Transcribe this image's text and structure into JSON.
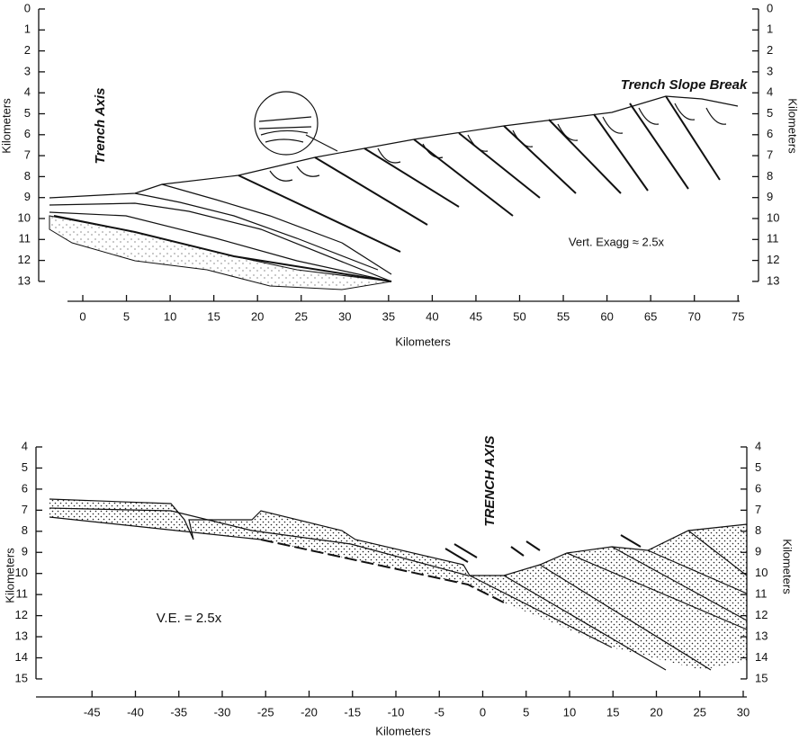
{
  "top_panel": {
    "y_label": "Kilometers",
    "y_label_right": "Kilometers",
    "x_label": "Kilometers",
    "y_ticks": [
      0,
      1,
      2,
      3,
      4,
      5,
      6,
      7,
      8,
      9,
      10,
      11,
      12,
      13
    ],
    "x_ticks": [
      0,
      5,
      10,
      15,
      20,
      25,
      30,
      35,
      40,
      45,
      50,
      55,
      60,
      65,
      70,
      75
    ],
    "annotations": {
      "trench_axis": "Trench Axis",
      "slope_break": "Trench Slope Break",
      "vert_exagg": "Vert. Exagg ≈ 2.5x"
    }
  },
  "bottom_panel": {
    "y_label": "Kilometers",
    "y_label_right": "Kilometers",
    "x_label": "Kilometers",
    "y_ticks": [
      4,
      5,
      6,
      7,
      8,
      9,
      10,
      11,
      12,
      13,
      14,
      15
    ],
    "x_ticks": [
      -45,
      -40,
      -35,
      -30,
      -25,
      -20,
      -15,
      -10,
      -5,
      0,
      5,
      10,
      15,
      20,
      25,
      30
    ],
    "annotations": {
      "trench_axis": "TRENCH AXIS",
      "ve": "V.E. = 2.5x"
    }
  }
}
